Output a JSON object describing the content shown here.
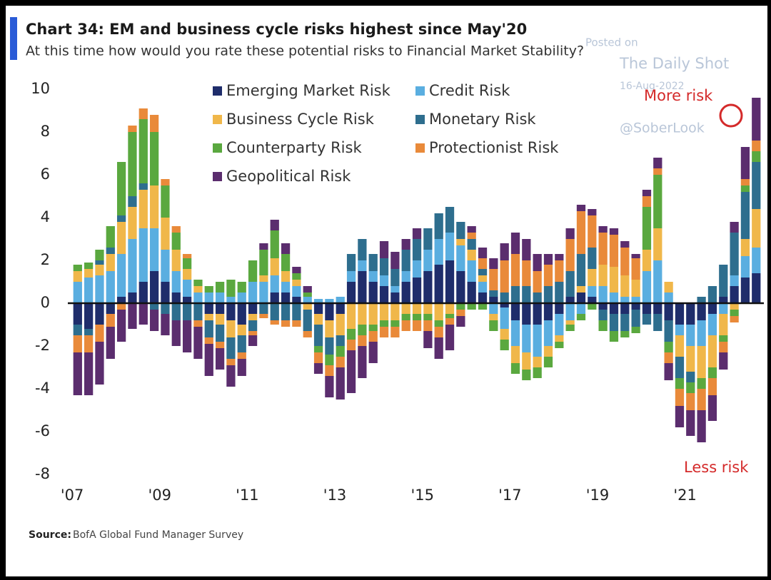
{
  "chart_data": {
    "type": "stacked_bar",
    "title": "Chart 34: EM and business cycle risks highest since May'20",
    "subtitle": "At this time how would you rate these potential risks to Financial Market Stability?",
    "annotations": {
      "more": "More risk",
      "less": "Less risk"
    },
    "watermark": {
      "posted": "Posted on",
      "site": "The Daily Shot",
      "date": "16-Aug-2022",
      "handle": "@SoberLook"
    },
    "source": {
      "label": "Source:",
      "text": "BofA Global Fund Manager Survey"
    },
    "xlim": [
      2006.9,
      2022.8
    ],
    "xticks": [
      {
        "value": 2007,
        "label": "'07"
      },
      {
        "value": 2009,
        "label": "'09"
      },
      {
        "value": 2011,
        "label": "'11"
      },
      {
        "value": 2013,
        "label": "'13"
      },
      {
        "value": 2015,
        "label": "'15"
      },
      {
        "value": 2017,
        "label": "'17"
      },
      {
        "value": 2019,
        "label": "'19"
      },
      {
        "value": 2021,
        "label": "'21"
      }
    ],
    "ylim": [
      -8,
      10
    ],
    "yticks": [
      10,
      8,
      6,
      4,
      2,
      0,
      -2,
      -4,
      -6,
      -8
    ],
    "x": [
      2007.125,
      2007.375,
      2007.625,
      2007.875,
      2008.125,
      2008.375,
      2008.625,
      2008.875,
      2009.125,
      2009.375,
      2009.625,
      2009.875,
      2010.125,
      2010.375,
      2010.625,
      2010.875,
      2011.125,
      2011.375,
      2011.625,
      2011.875,
      2012.125,
      2012.375,
      2012.625,
      2012.875,
      2013.125,
      2013.375,
      2013.625,
      2013.875,
      2014.125,
      2014.375,
      2014.625,
      2014.875,
      2015.125,
      2015.375,
      2015.625,
      2015.875,
      2016.125,
      2016.375,
      2016.625,
      2016.875,
      2017.125,
      2017.375,
      2017.625,
      2017.875,
      2018.125,
      2018.375,
      2018.625,
      2018.875,
      2019.125,
      2019.375,
      2019.625,
      2019.875,
      2020.125,
      2020.375,
      2020.625,
      2020.875,
      2021.125,
      2021.375,
      2021.625,
      2021.875,
      2022.125,
      2022.375,
      2022.625
    ],
    "series": [
      {
        "name": "Emerging Market Risk",
        "color": "#1f2d6b",
        "values": [
          -1,
          -1.2,
          -1,
          -0.5,
          0.3,
          0.5,
          1,
          1.5,
          1,
          0.5,
          0.3,
          0,
          -0.5,
          -0.5,
          -0.8,
          -1,
          -0.5,
          0,
          0.5,
          0.5,
          0.3,
          0,
          -0.5,
          -0.8,
          -0.5,
          1,
          1.5,
          1,
          0.8,
          0.5,
          1,
          1.2,
          1.5,
          1.8,
          2,
          1.5,
          1,
          0.5,
          0.3,
          -0.2,
          -0.8,
          -1,
          -1,
          -0.8,
          -0.5,
          0.3,
          0.5,
          0.3,
          -0.3,
          -0.5,
          -0.5,
          -0.3,
          -0.5,
          -0.5,
          -0.8,
          -1,
          -1,
          -0.8,
          -0.5,
          0.3,
          0.8,
          1.2,
          1.4
        ]
      },
      {
        "name": "Credit Risk",
        "color": "#5aaee0",
        "values": [
          1,
          1.2,
          1.3,
          1.5,
          2,
          2.5,
          2.5,
          2,
          1.5,
          1,
          0.8,
          0.5,
          0.5,
          0.5,
          0.3,
          0.5,
          1,
          1,
          0.8,
          0.5,
          0.5,
          0.3,
          0.2,
          0.2,
          0.3,
          0.5,
          0.5,
          0.5,
          0.5,
          0.3,
          0.5,
          0.8,
          1,
          1.2,
          1.3,
          1.2,
          1,
          0.5,
          -0.5,
          -1,
          -1.2,
          -1.3,
          -1.5,
          -1.2,
          -1,
          -0.8,
          -0.5,
          0.5,
          0.8,
          0.5,
          0.3,
          0.3,
          1.5,
          2,
          0.5,
          -0.5,
          -1,
          -1.2,
          -1,
          -0.5,
          0.5,
          1,
          1.2
        ]
      },
      {
        "name": "Business Cycle Risk",
        "color": "#f0b74a",
        "values": [
          0.5,
          0.4,
          0.5,
          0.8,
          1.5,
          1.5,
          1.8,
          2,
          1.5,
          1,
          0.5,
          0.3,
          -0.3,
          -0.5,
          -0.8,
          -0.5,
          -0.3,
          0.3,
          0.8,
          0.5,
          0.3,
          -0.3,
          -0.5,
          -0.8,
          -1,
          -1.2,
          -1,
          -1,
          -0.8,
          -0.8,
          -0.5,
          -0.5,
          -0.5,
          -0.8,
          -0.5,
          0.3,
          0.5,
          0.3,
          -0.3,
          -0.5,
          -0.8,
          -0.8,
          -0.5,
          -0.5,
          -0.3,
          -0.2,
          0.3,
          0.8,
          1,
          1.2,
          1,
          0.8,
          1,
          1.5,
          0.5,
          -1,
          -1.2,
          -1.5,
          -1.5,
          -1,
          -0.3,
          0.8,
          1.8
        ]
      },
      {
        "name": "Monetary Risk",
        "color": "#2e6e8e",
        "values": [
          -0.5,
          -0.3,
          0.2,
          0.3,
          0.3,
          0.5,
          0.3,
          -0.3,
          -0.5,
          -0.8,
          -0.8,
          -0.8,
          -0.8,
          -0.8,
          -1,
          -0.8,
          -0.5,
          -0.5,
          -0.8,
          -0.8,
          -0.8,
          -1,
          -1,
          -0.8,
          -0.5,
          0.8,
          1,
          0.8,
          0.8,
          0.8,
          1,
          1,
          1,
          1.2,
          1.2,
          0.8,
          0.5,
          0.3,
          0.3,
          0.5,
          0.8,
          0.8,
          0.5,
          0.8,
          1,
          1.2,
          1.5,
          1,
          -0.5,
          -0.8,
          -0.8,
          -0.8,
          -0.5,
          -0.8,
          -1,
          -1,
          -0.5,
          0.3,
          0.8,
          1.5,
          2,
          2.2,
          2.2
        ]
      },
      {
        "name": "Counterparty Risk",
        "color": "#5aa83f",
        "values": [
          0.3,
          0.3,
          0.5,
          1,
          2.5,
          3,
          3,
          2.5,
          1.5,
          0.8,
          0.5,
          0.3,
          0.3,
          0.5,
          0.8,
          0.5,
          1,
          1.2,
          1.3,
          0.8,
          0.3,
          0.2,
          -0.3,
          -0.5,
          -0.5,
          -0.5,
          -0.5,
          -0.3,
          -0.3,
          -0.3,
          -0.3,
          -0.3,
          -0.3,
          -0.3,
          -0.2,
          -0.3,
          -0.3,
          -0.3,
          -0.5,
          -0.5,
          -0.5,
          -0.5,
          -0.5,
          -0.5,
          -0.3,
          -0.3,
          -0.3,
          -0.3,
          -0.5,
          -0.5,
          -0.3,
          -0.3,
          2,
          2.5,
          -0.5,
          -0.5,
          -0.5,
          -0.5,
          -0.5,
          -0.3,
          -0.3,
          0.3,
          0.5
        ]
      },
      {
        "name": "Protectionist Risk",
        "color": "#e98a3a",
        "values": [
          -0.8,
          -0.8,
          -0.8,
          -0.6,
          -0.3,
          0.3,
          0.5,
          0.8,
          0.3,
          0.3,
          0.2,
          -0.3,
          -0.3,
          -0.3,
          -0.3,
          -0.3,
          -0.2,
          -0.2,
          -0.2,
          -0.3,
          -0.3,
          -0.3,
          -0.5,
          -0.5,
          -0.5,
          -0.5,
          -0.5,
          -0.5,
          -0.5,
          -0.5,
          -0.5,
          -0.5,
          -0.5,
          -0.5,
          -0.3,
          -0.3,
          0.3,
          0.5,
          1,
          1.5,
          1.5,
          1.2,
          1,
          1,
          1,
          1.5,
          2,
          1.5,
          1.5,
          1.5,
          1.3,
          1,
          0.5,
          0.3,
          -0.5,
          -0.8,
          -0.8,
          -1,
          -0.8,
          -0.5,
          -0.3,
          0.3,
          0.5
        ]
      },
      {
        "name": "Geopolitical Risk",
        "color": "#5b2d6e",
        "values": [
          -2,
          -2,
          -2,
          -1.5,
          -1.5,
          -1.2,
          -1,
          -1,
          -1,
          -1.2,
          -1.5,
          -1.5,
          -1.5,
          -1,
          -1,
          -0.8,
          -0.5,
          0.3,
          0.5,
          0.5,
          0.3,
          0.3,
          -0.5,
          -1,
          -1.5,
          -2,
          -1.5,
          -1,
          0.8,
          0.8,
          0.5,
          0.5,
          -0.8,
          -1,
          -1.2,
          -0.5,
          0.3,
          0.5,
          0.5,
          0.8,
          1,
          1,
          0.8,
          0.5,
          0.3,
          0.5,
          0.3,
          0.3,
          0.3,
          0.3,
          0.3,
          0.2,
          0.3,
          0.5,
          -0.8,
          -1,
          -1.2,
          -1.5,
          -1.2,
          -0.8,
          0.5,
          1.5,
          2
        ]
      }
    ]
  }
}
